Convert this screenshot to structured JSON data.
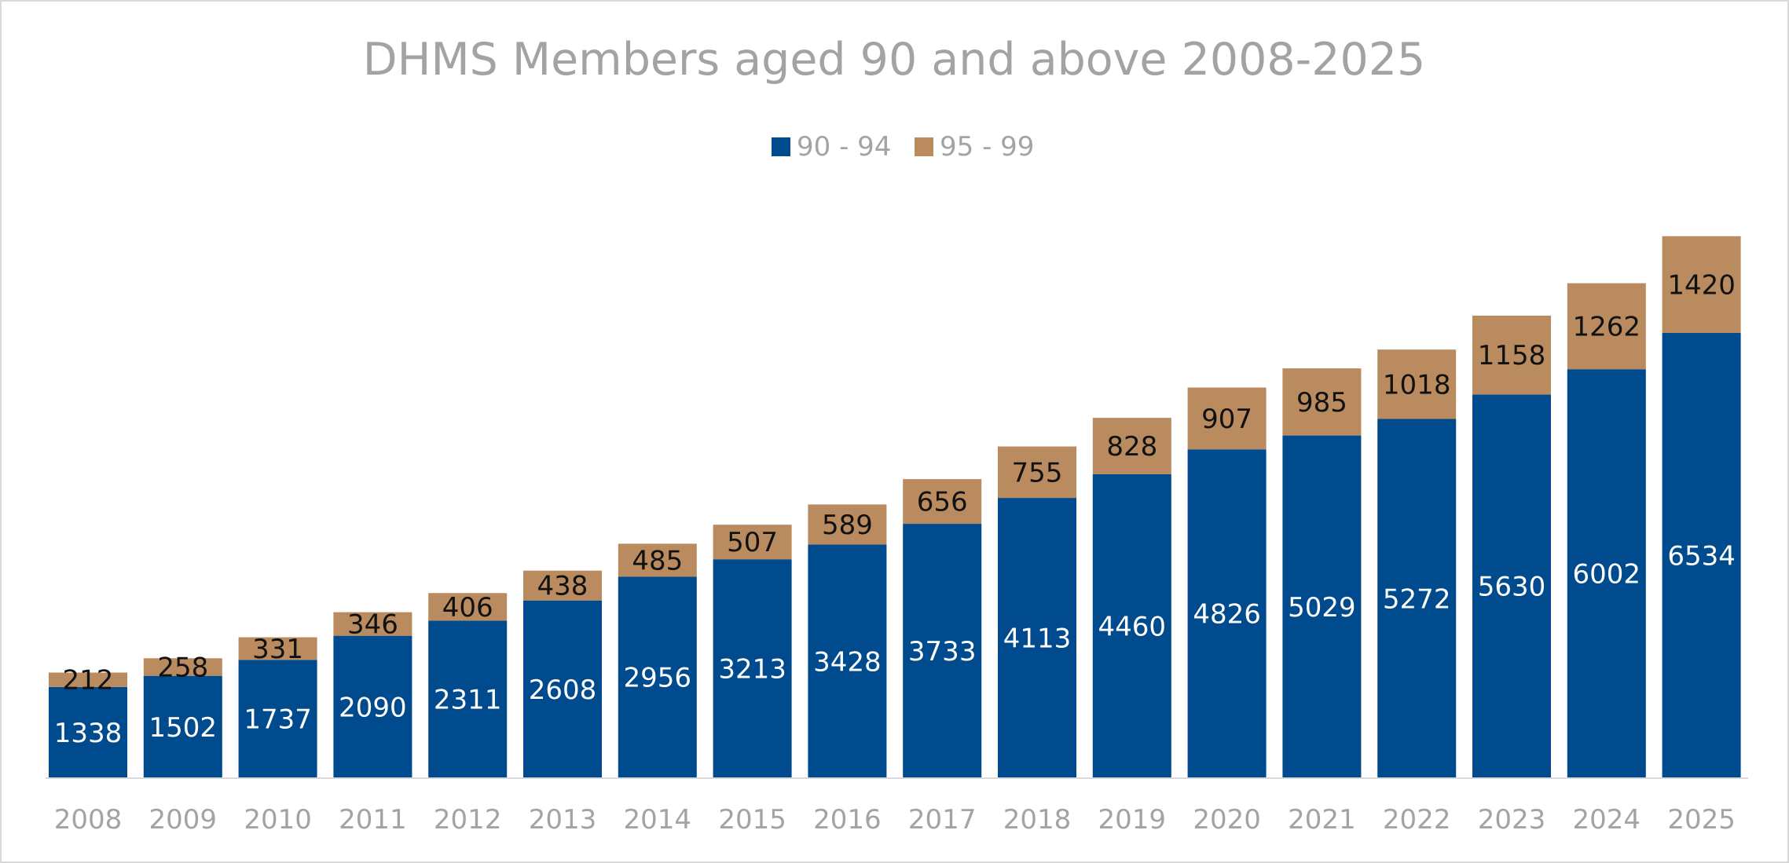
{
  "chart_data": {
    "type": "bar",
    "stacked": true,
    "title": "DHMS Members aged 90 and above 2008-2025",
    "xlabel": "",
    "ylabel": "",
    "categories": [
      "2008",
      "2009",
      "2010",
      "2011",
      "2012",
      "2013",
      "2014",
      "2015",
      "2016",
      "2017",
      "2018",
      "2019",
      "2020",
      "2021",
      "2022",
      "2023",
      "2024",
      "2025"
    ],
    "series": [
      {
        "name": "90 - 94",
        "color": "#004b8d",
        "values": [
          1338,
          1502,
          1737,
          2090,
          2311,
          2608,
          2956,
          3213,
          3428,
          3733,
          4113,
          4460,
          4826,
          5029,
          5272,
          5630,
          6002,
          6534
        ]
      },
      {
        "name": "95 - 99",
        "color": "#b98b5e",
        "values": [
          212,
          258,
          331,
          346,
          406,
          438,
          485,
          507,
          589,
          656,
          755,
          828,
          907,
          985,
          1018,
          1158,
          1262,
          1420
        ]
      }
    ],
    "ylim": [
      0,
      9000
    ],
    "grid": false,
    "legend": "top",
    "data_labels": true
  }
}
